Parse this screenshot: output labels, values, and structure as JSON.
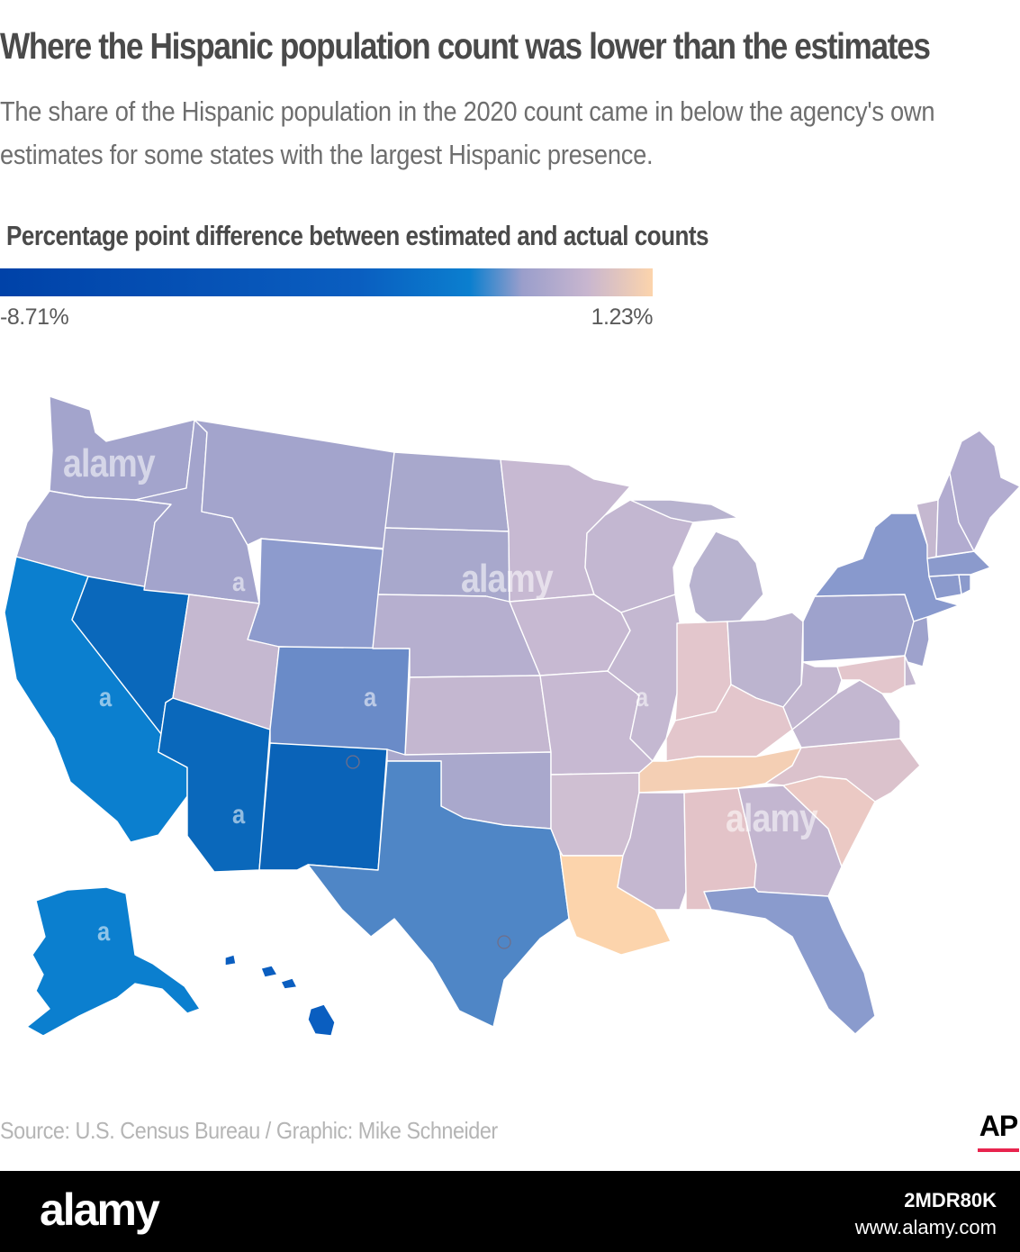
{
  "title": "Where the Hispanic population count was lower than the estimates",
  "subtitle": "The share of the Hispanic population in the 2020 count came in below the agency's own estimates for some states with the largest Hispanic presence.",
  "legend": {
    "title": "Percentage point difference between estimated and actual counts",
    "min_label": "-8.71%",
    "max_label": "1.23%",
    "min_value": -8.71,
    "max_value": 1.23,
    "colors": [
      "#0042a8",
      "#0a5ec0",
      "#0b7fcf",
      "#9a9ecb",
      "#c8b6cf",
      "#fcd4ac"
    ]
  },
  "map": {
    "state_colors": {
      "WA": "#a3a4cc",
      "OR": "#a3a4cc",
      "CA": "#0b7fcf",
      "NV": "#0a68bb",
      "ID": "#a3a4cc",
      "MT": "#a3a4cc",
      "WY": "#8d9bcd",
      "UT": "#c5b8d0",
      "AZ": "#0a68bb",
      "CO": "#6a8bc8",
      "NM": "#0a63b8",
      "ND": "#a8a8cc",
      "SD": "#a8a8cc",
      "NE": "#b6afcf",
      "KS": "#c4b7d0",
      "OK": "#a9a8cc",
      "TX": "#4f86c6",
      "MN": "#c7b9d2",
      "IA": "#c7b9d2",
      "MO": "#c7b9d2",
      "AR": "#cfbfd2",
      "LA": "#fcd4ac",
      "WI": "#c3b7d1",
      "IL": "#c4b8d1",
      "MI": "#b8b3cf",
      "IN": "#e3c6cc",
      "OH": "#bcb4cf",
      "KY": "#e3c6cc",
      "TN": "#f4cfb4",
      "MS": "#c4b7d0",
      "AL": "#e3c3c8",
      "GA": "#c3b6d0",
      "FL": "#8a9bcd",
      "SC": "#ebc9c4",
      "NC": "#dbc2cc",
      "VA": "#c3b7d0",
      "WV": "#c3b7d0",
      "PA": "#9ea2cc",
      "NY": "#8899cd",
      "NJ": "#9ea2cc",
      "DE": "#c3b7d0",
      "MD": "#e3c6cc",
      "CT": "#8b9acc",
      "RI": "#8b9acc",
      "MA": "#8b9acc",
      "VT": "#c5b8d0",
      "NH": "#b2acd0",
      "ME": "#b2acd0",
      "AK": "#0b7fcf",
      "HI": "#0a5ec0"
    }
  },
  "source": "Source: U.S. Census Bureau / Graphic: Mike Schneider",
  "ap_logo": "AP",
  "watermarks": [
    "alamy",
    "alamy",
    "alamy",
    "a",
    "a",
    "a",
    "a",
    "a",
    "a",
    "a"
  ],
  "footer": {
    "logo": "alamy",
    "image_id": "2MDR80K",
    "url": "www.alamy.com"
  }
}
